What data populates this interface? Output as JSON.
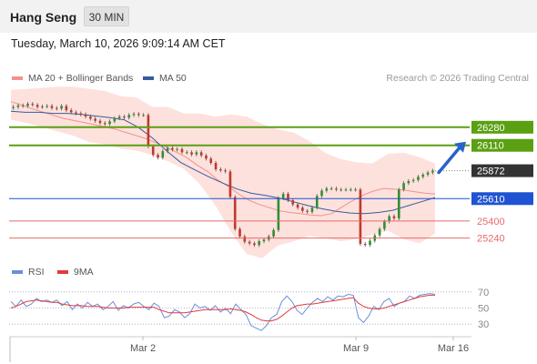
{
  "header": {
    "title": "Hang Seng",
    "timeframe": "30 MIN"
  },
  "datetime": "Tuesday, March 10, 2026 9:09:14 AM CET",
  "legend": {
    "bollinger": {
      "label": "MA 20 + Bollinger Bands",
      "color": "#f4918b"
    },
    "ma50": {
      "label": "MA 50",
      "color": "#3a5a9e"
    },
    "rsi": {
      "label": "RSI",
      "color": "#6b8fd8"
    },
    "ma9": {
      "label": "9MA",
      "color": "#e23a3a"
    }
  },
  "credit": "Research © 2026 Trading Central",
  "colors": {
    "green": "#5aa012",
    "blue": "#1f53d1",
    "red": "#e86a6a",
    "dark": "#333333",
    "band": "#fde1dd"
  },
  "chart_data": [
    {
      "type": "candlestick",
      "title": "Hang Seng",
      "ylim": [
        25040,
        26620
      ],
      "x_tick_labels": [
        "Mar 2",
        "Mar 9",
        "Mar 16"
      ],
      "levels": [
        {
          "value": 26280,
          "label": "26280",
          "kind": "resistance",
          "color": "#5aa012"
        },
        {
          "value": 26110,
          "label": "26110",
          "kind": "resistance",
          "color": "#5aa012"
        },
        {
          "value": 25872,
          "label": "25872",
          "kind": "last",
          "color": "#333333"
        },
        {
          "value": 25610,
          "label": "25610",
          "kind": "pivot",
          "color": "#1f53d1"
        },
        {
          "value": 25400,
          "label": "25400",
          "kind": "support",
          "color": "#e86a6a"
        },
        {
          "value": 25240,
          "label": "25240",
          "kind": "support",
          "color": "#e86a6a"
        }
      ],
      "close": [
        26470,
        26485,
        26480,
        26500,
        26490,
        26470,
        26475,
        26480,
        26460,
        26455,
        26480,
        26440,
        26420,
        26410,
        26400,
        26380,
        26360,
        26340,
        26320,
        26310,
        26335,
        26365,
        26380,
        26370,
        26395,
        26405,
        26395,
        26395,
        26100,
        26020,
        25995,
        26055,
        26085,
        26070,
        26075,
        26045,
        26045,
        26025,
        26045,
        26015,
        25985,
        25945,
        25885,
        25875,
        25865,
        25625,
        25325,
        25255,
        25205,
        25190,
        25175,
        25210,
        25225,
        25255,
        25315,
        25615,
        25655,
        25595,
        25555,
        25525,
        25495,
        25485,
        25525,
        25635,
        25685,
        25705,
        25705,
        25695,
        25695,
        25695,
        25695,
        25695,
        25185,
        25175,
        25215,
        25265,
        25325,
        25395,
        25445,
        25425,
        25695,
        25755,
        25775,
        25785,
        25815,
        25835,
        25855,
        25872
      ],
      "ma20": [
        26520,
        26490,
        26455,
        26425,
        26395,
        26365,
        26345,
        26325,
        26305,
        26285,
        26265,
        26235,
        26205,
        26175,
        26135,
        26095,
        26045,
        25995,
        25925,
        25865,
        25785,
        25725,
        25655,
        25595,
        25555,
        25525,
        25495,
        25480,
        25470,
        25455,
        25450,
        25470,
        25530,
        25590,
        25640,
        25680,
        25705,
        25700,
        25690,
        25675,
        25662,
        25652
      ],
      "ma20_x": [
        0,
        2,
        4,
        6,
        8,
        10,
        12,
        14,
        16,
        18,
        20,
        22,
        24,
        26,
        28,
        30,
        32,
        34,
        36,
        38,
        40,
        42,
        44,
        46,
        48,
        50,
        52,
        54,
        56,
        58,
        60,
        62,
        64,
        66,
        68,
        70,
        72,
        74,
        76,
        78,
        80,
        82
      ],
      "bb_upper": [
        26630,
        26640,
        26650,
        26660,
        26660,
        26640,
        26620,
        26570,
        26560,
        26470,
        26470,
        26410,
        26410,
        26380,
        26400,
        26380,
        26310,
        26260,
        26230,
        26150,
        26040,
        25980,
        25950,
        25940,
        26030,
        26040,
        26000,
        25940
      ],
      "bb_lower": [
        26350,
        26320,
        26280,
        26240,
        26200,
        26140,
        26120,
        26080,
        26060,
        26020,
        25960,
        25890,
        25750,
        25550,
        25300,
        25090,
        25050,
        25170,
        25210,
        25260,
        25240,
        25210,
        25230,
        25270,
        25310,
        25230,
        25190,
        25280
      ],
      "bb_x": [
        0,
        4,
        8,
        12,
        16,
        20,
        24,
        28,
        32,
        36,
        40,
        44,
        48,
        52,
        56,
        60,
        64,
        68,
        72,
        76,
        80,
        84,
        88,
        92,
        96,
        100,
        104,
        108
      ],
      "ma50": [
        26430,
        26420,
        26420,
        26410,
        26410,
        26400,
        26385,
        26370,
        26350,
        26280,
        26180,
        26060,
        25950,
        25880,
        25815,
        25755,
        25700,
        25660,
        25640,
        25615,
        25580,
        25545,
        25515,
        25490,
        25475,
        25470,
        25480,
        25500,
        25540,
        25580,
        25620
      ],
      "ma50_x": [
        0,
        6,
        12,
        18,
        24,
        30,
        36,
        42,
        48,
        54,
        60,
        66,
        72,
        78,
        84,
        90,
        96,
        102,
        108,
        114,
        120,
        126,
        132,
        138,
        144,
        150,
        156,
        162,
        168,
        174,
        180
      ],
      "target_arrow": {
        "from": 25872,
        "to": 26110
      }
    },
    {
      "type": "line",
      "title": "RSI",
      "ylim": [
        20,
        80
      ],
      "y_ticks": [
        70,
        50,
        30
      ],
      "rsi": [
        58,
        52,
        60,
        52,
        55,
        62,
        58,
        60,
        57,
        60,
        53,
        58,
        48,
        55,
        50,
        57,
        52,
        55,
        48,
        52,
        58,
        47,
        53,
        50,
        55,
        57,
        52,
        48,
        56,
        52,
        38,
        40,
        48,
        45,
        38,
        43,
        55,
        50,
        52,
        47,
        53,
        45,
        50,
        43,
        55,
        48,
        42,
        28,
        25,
        22,
        28,
        38,
        42,
        58,
        65,
        58,
        47,
        42,
        50,
        57,
        62,
        58,
        64,
        60,
        65,
        64,
        67,
        66,
        38,
        32,
        40,
        52,
        48,
        58,
        62,
        52,
        56,
        58,
        65,
        62,
        66,
        67,
        68,
        67
      ],
      "ma9": [
        50,
        52,
        55,
        58,
        59,
        60,
        59,
        58,
        57,
        57,
        55,
        54,
        53,
        53,
        53,
        52,
        52,
        52,
        51,
        50,
        50,
        50,
        50,
        51,
        51,
        51,
        51,
        51,
        51,
        48,
        46,
        44,
        44,
        44,
        44,
        45,
        46,
        47,
        48,
        48,
        48,
        48,
        48,
        49,
        48,
        47,
        45,
        42,
        38,
        35,
        34,
        34,
        36,
        40,
        45,
        50,
        53,
        54,
        55,
        55,
        56,
        57,
        58,
        59,
        60,
        61,
        62,
        63,
        56,
        52,
        50,
        49,
        49,
        50,
        52,
        54,
        56,
        58,
        60,
        62,
        64,
        65,
        66,
        66
      ]
    }
  ]
}
